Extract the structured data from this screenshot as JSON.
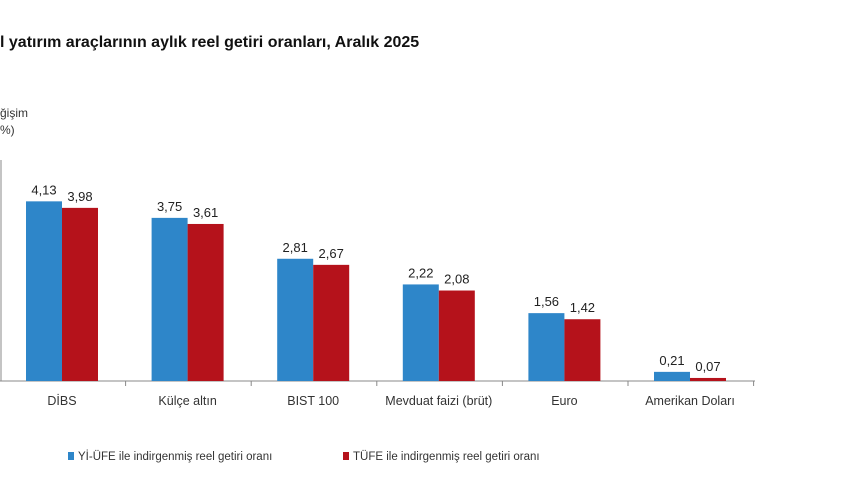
{
  "chart_data": {
    "type": "bar",
    "title": "l yatırım araçlarının aylık reel getiri oranları, Aralık 2025",
    "ylabel_lines": [
      "ğişim",
      "%)"
    ],
    "categories": [
      "DİBS",
      "Külçe altın",
      "BIST 100",
      "Mevduat faizi (brüt)",
      "Euro",
      "Amerikan Doları"
    ],
    "series": [
      {
        "name": "Yİ-ÜFE ile indirgenmiş reel getiri oranı",
        "color": "#2e86c9",
        "values": [
          4.13,
          3.75,
          2.81,
          2.22,
          1.56,
          0.21
        ],
        "labels": [
          "4,13",
          "3,75",
          "2,81",
          "2,22",
          "1,56",
          "0,21"
        ]
      },
      {
        "name": "TÜFE ile indirgenmiş reel getiri oranı",
        "color": "#b5121b",
        "values": [
          3.98,
          3.61,
          2.67,
          2.08,
          1.42,
          0.07
        ],
        "labels": [
          "3,98",
          "3,61",
          "2,67",
          "2,08",
          "1,42",
          "0,07"
        ]
      }
    ],
    "ylim": [
      0,
      5
    ],
    "grid": false,
    "legend": "bottom"
  }
}
